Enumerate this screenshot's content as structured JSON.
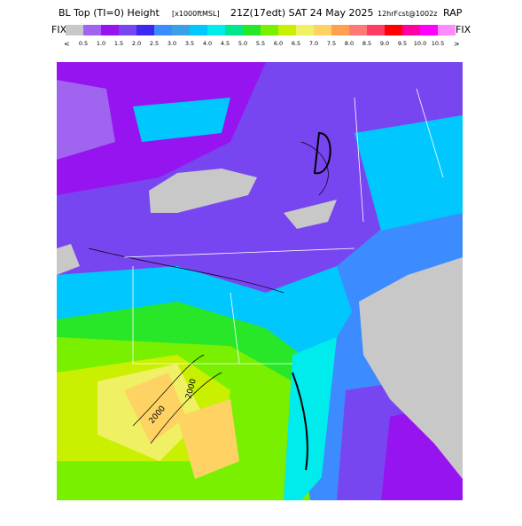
{
  "header": {
    "title": "BL Top (TI=0) Height",
    "units": "[x1000ftMSL]",
    "valid": "21Z(17edt) SAT 24 May 2025",
    "forecast": "12hrFcst@1002z",
    "model": "RAP"
  },
  "legend": {
    "fix_left": "FIX",
    "fix_right": "FIX",
    "arrow_left": "<",
    "arrow_right": ">",
    "colors": [
      "#c8c8c8",
      "#a064f0",
      "#9614f0",
      "#7846f0",
      "#3c28f0",
      "#3c8cff",
      "#3ca0e6",
      "#00c8ff",
      "#00ebeb",
      "#00e68c",
      "#28e628",
      "#78f000",
      "#c8f000",
      "#f0f064",
      "#ffd264",
      "#ffa050",
      "#ff7878",
      "#ff3c64",
      "#ff0000",
      "#ff00a0",
      "#ff00ff",
      "#ff8cff"
    ],
    "labels": [
      "0.5",
      "1.0",
      "1.5",
      "2.0",
      "2.5",
      "3.0",
      "3.5",
      "4.0",
      "4.5",
      "5.0",
      "5.5",
      "6.0",
      "6.5",
      "7.0",
      "7.5",
      "8.0",
      "8.5",
      "9.0",
      "9.5",
      "10.0",
      "10.5"
    ]
  },
  "map": {
    "contour_labels": [
      "2000",
      "2000"
    ]
  }
}
